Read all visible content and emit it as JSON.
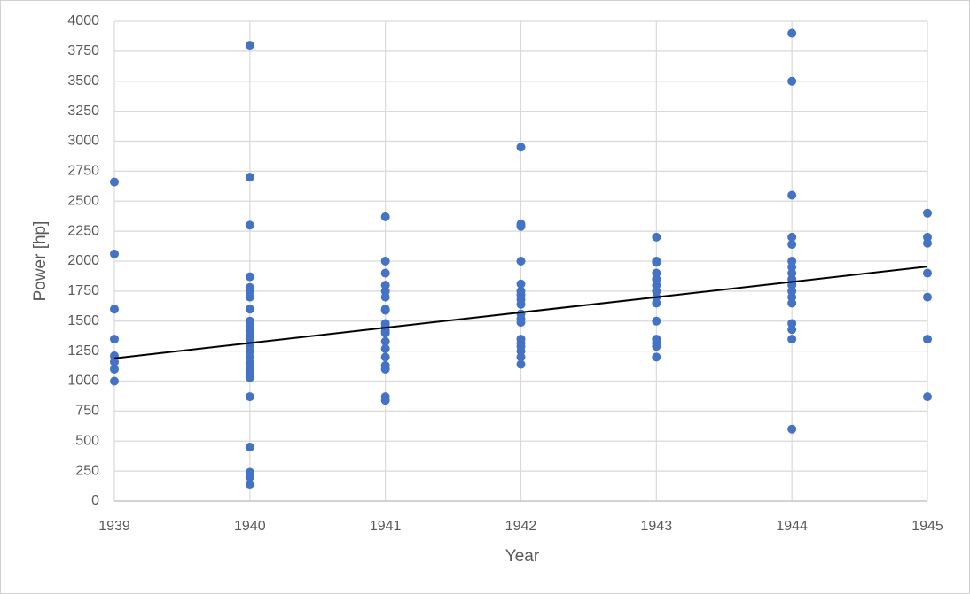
{
  "chart_data": {
    "type": "scatter",
    "x_label": "Year",
    "y_label": "Power [hp]",
    "color": "#4472c4",
    "x": [
      1939,
      1939,
      1939,
      1939,
      1939,
      1939,
      1939,
      1939,
      1940,
      1940,
      1940,
      1940,
      1940,
      1940,
      1940,
      1940,
      1940,
      1940,
      1940,
      1940,
      1940,
      1940,
      1940,
      1940,
      1940,
      1940,
      1940,
      1940,
      1940,
      1940,
      1940,
      1940,
      1940,
      1940,
      1941,
      1941,
      1941,
      1941,
      1941,
      1941,
      1941,
      1941,
      1941,
      1941,
      1941,
      1941,
      1941,
      1941,
      1941,
      1941,
      1941,
      1941,
      1941,
      1942,
      1942,
      1942,
      1942,
      1942,
      1942,
      1942,
      1942,
      1942,
      1942,
      1942,
      1942,
      1942,
      1942,
      1942,
      1942,
      1942,
      1942,
      1943,
      1943,
      1943,
      1943,
      1943,
      1943,
      1943,
      1943,
      1943,
      1943,
      1943,
      1943,
      1943,
      1943,
      1944,
      1944,
      1944,
      1944,
      1944,
      1944,
      1944,
      1944,
      1944,
      1944,
      1944,
      1944,
      1944,
      1944,
      1944,
      1944,
      1944,
      1944,
      1945,
      1945,
      1945,
      1945,
      1945,
      1945,
      1945
    ],
    "values": [
      2660,
      2060,
      1600,
      1350,
      1210,
      1160,
      1100,
      1000,
      3800,
      2700,
      2300,
      1870,
      1780,
      1750,
      1700,
      1600,
      1500,
      1460,
      1420,
      1380,
      1350,
      1300,
      1250,
      1200,
      1150,
      1100,
      1080,
      1050,
      1030,
      870,
      450,
      240,
      200,
      140,
      2370,
      2000,
      1900,
      1800,
      1750,
      1700,
      1600,
      1590,
      1480,
      1450,
      1420,
      1400,
      1330,
      1270,
      1200,
      1130,
      1100,
      870,
      840,
      2950,
      2310,
      2290,
      2000,
      1810,
      1750,
      1720,
      1680,
      1640,
      1560,
      1520,
      1490,
      1350,
      1320,
      1290,
      1250,
      1200,
      1140,
      2200,
      2000,
      1990,
      1900,
      1850,
      1800,
      1750,
      1700,
      1650,
      1500,
      1350,
      1320,
      1290,
      1200,
      3900,
      3500,
      2550,
      2200,
      2140,
      2000,
      1950,
      1900,
      1850,
      1820,
      1800,
      1750,
      1700,
      1650,
      1480,
      1430,
      1350,
      600,
      2400,
      2200,
      2150,
      1900,
      1700,
      1350,
      870
    ],
    "trend": {
      "color": "#000000",
      "x": [
        1939,
        1945
      ],
      "values": [
        1190,
        1955
      ]
    },
    "xlim": [
      1939,
      1945
    ],
    "xticks": [
      1939,
      1940,
      1941,
      1942,
      1943,
      1944,
      1945
    ],
    "ylim": [
      0,
      4000
    ],
    "yticks": [
      0,
      250,
      500,
      750,
      1000,
      1250,
      1500,
      1750,
      2000,
      2250,
      2500,
      2750,
      3000,
      3250,
      3500,
      3750,
      4000
    ],
    "grid": true
  }
}
